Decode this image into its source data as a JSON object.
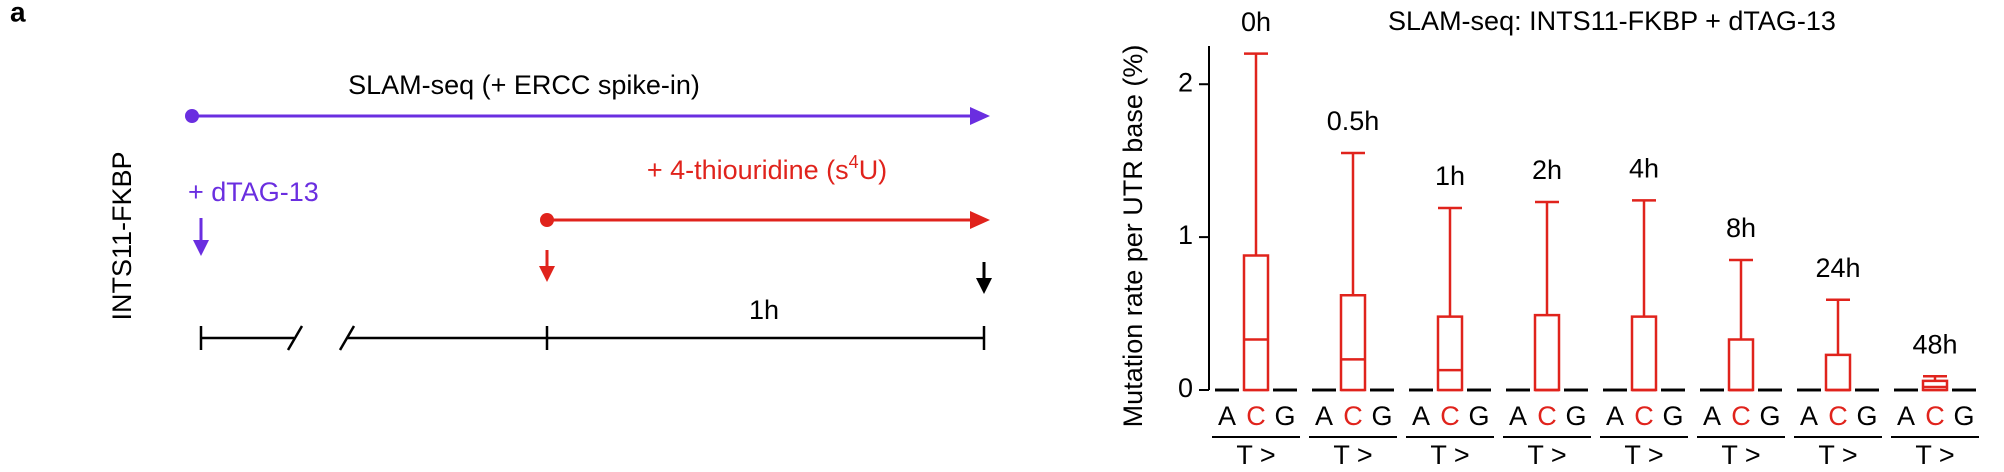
{
  "panel_label": "a",
  "schematic": {
    "top_label": "SLAM-seq (+ ERCC spike-in)",
    "cell_line": "INTS11-FKBP",
    "treatment": "+ dTAG-13",
    "label_4su": [
      "+ 4-thiouridine (s",
      "4",
      "U)"
    ],
    "duration": "1h"
  },
  "chart_data": {
    "type": "box",
    "title": "SLAM-seq: INTS11-FKBP + dTAG-13",
    "y_label": "Mutation rate per UTR base (%)",
    "categories": [
      "0h",
      "0.5h",
      "1h",
      "2h",
      "4h",
      "8h",
      "24h",
      "48h"
    ],
    "group_label": "T >",
    "ylim": [
      0,
      2.25
    ],
    "yticks": [
      0,
      1,
      2
    ],
    "series": [
      {
        "name": "A",
        "color": "#000000",
        "values": [
          [
            0,
            0,
            0,
            0,
            0
          ],
          [
            0,
            0,
            0,
            0,
            0
          ],
          [
            0,
            0,
            0,
            0,
            0
          ],
          [
            0,
            0,
            0,
            0,
            0
          ],
          [
            0,
            0,
            0,
            0,
            0
          ],
          [
            0,
            0,
            0,
            0,
            0
          ],
          [
            0,
            0,
            0,
            0,
            0
          ],
          [
            0,
            0,
            0,
            0,
            0
          ]
        ]
      },
      {
        "name": "C",
        "color": "#e0231c",
        "values": [
          [
            0,
            0,
            0.33,
            0.88,
            2.2
          ],
          [
            0,
            0,
            0.2,
            0.62,
            1.55
          ],
          [
            0,
            0,
            0.13,
            0.48,
            1.19
          ],
          [
            0,
            0,
            0,
            0.49,
            1.23
          ],
          [
            0,
            0,
            0,
            0.48,
            1.24
          ],
          [
            0,
            0,
            0,
            0.33,
            0.85
          ],
          [
            0,
            0,
            0,
            0.23,
            0.59
          ],
          [
            0,
            0,
            0.02,
            0.06,
            0.09
          ]
        ]
      },
      {
        "name": "G",
        "color": "#000000",
        "values": [
          [
            0,
            0,
            0,
            0,
            0
          ],
          [
            0,
            0,
            0,
            0,
            0
          ],
          [
            0,
            0,
            0,
            0,
            0
          ],
          [
            0,
            0,
            0,
            0,
            0
          ],
          [
            0,
            0,
            0,
            0,
            0
          ],
          [
            0,
            0,
            0,
            0,
            0
          ],
          [
            0,
            0,
            0,
            0,
            0
          ],
          [
            0,
            0,
            0,
            0,
            0
          ]
        ]
      }
    ]
  }
}
